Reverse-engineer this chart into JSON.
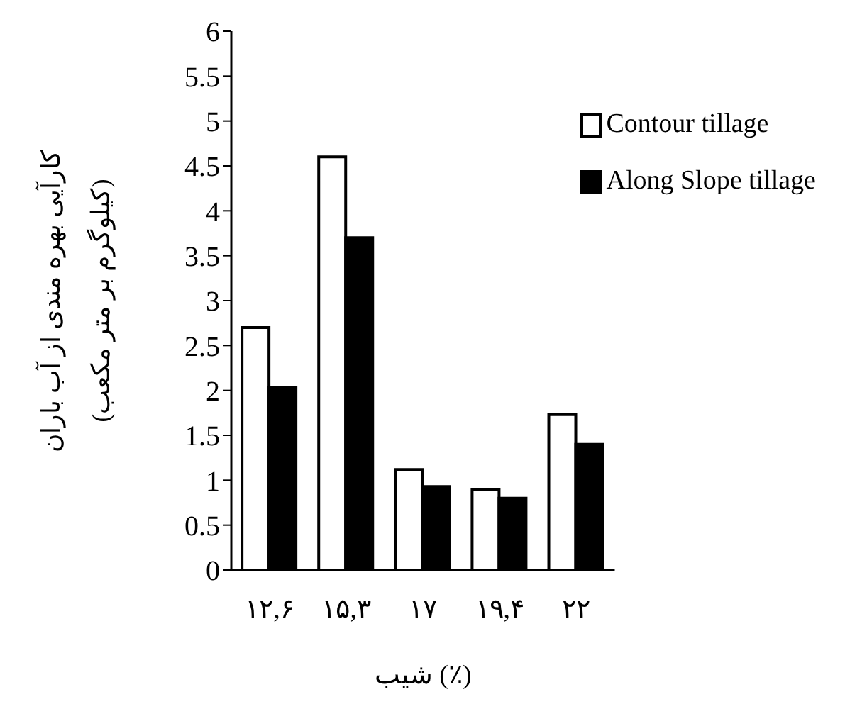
{
  "chart_data": {
    "type": "bar",
    "xlabel": "شیب (٪)",
    "ylabel": "کارآیی بهره مندی از آب باران\n(کیلوگرم بر متر مکعب)",
    "categories": [
      "۱۲,۶",
      "۱۵,۳",
      "۱۷",
      "۱۹,۴",
      "۲۲"
    ],
    "series": [
      {
        "name": "Contour tillage",
        "color": "#ffffff",
        "values": [
          2.7,
          4.6,
          1.12,
          0.9,
          1.73
        ]
      },
      {
        "name": "Along Slope tillage",
        "color": "#000000",
        "values": [
          2.03,
          3.7,
          0.93,
          0.8,
          1.4
        ]
      }
    ],
    "ylim": [
      0,
      6
    ],
    "yticks": [
      0,
      0.5,
      1,
      1.5,
      2,
      2.5,
      3,
      3.5,
      4,
      4.5,
      5,
      5.5,
      6
    ],
    "legend": "top right"
  }
}
